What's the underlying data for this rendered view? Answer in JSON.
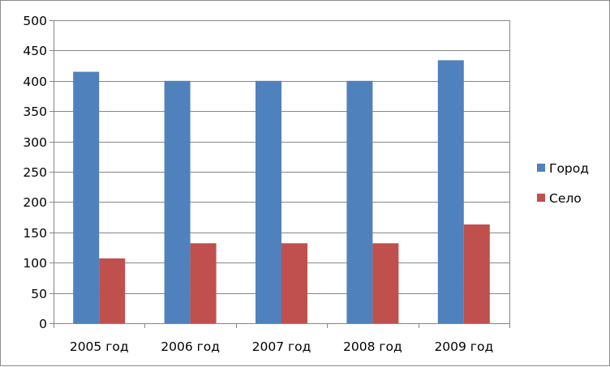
{
  "chart_data": {
    "type": "bar",
    "title": "",
    "xlabel": "",
    "ylabel": "",
    "categories": [
      "2005 год",
      "2006 год",
      "2007 год",
      "2008 год",
      "2009 год"
    ],
    "series": [
      {
        "name": "Город",
        "values": [
          415,
          400,
          400,
          400,
          434
        ],
        "color": "#4F81BD"
      },
      {
        "name": "Село",
        "values": [
          107,
          132,
          132,
          132,
          163
        ],
        "color": "#C0504D"
      }
    ],
    "ylim": [
      0,
      500
    ],
    "yticks": [
      "0",
      "50",
      "100",
      "150",
      "200",
      "250",
      "300",
      "350",
      "400",
      "450",
      "500"
    ],
    "grid": true,
    "legend": "right"
  }
}
